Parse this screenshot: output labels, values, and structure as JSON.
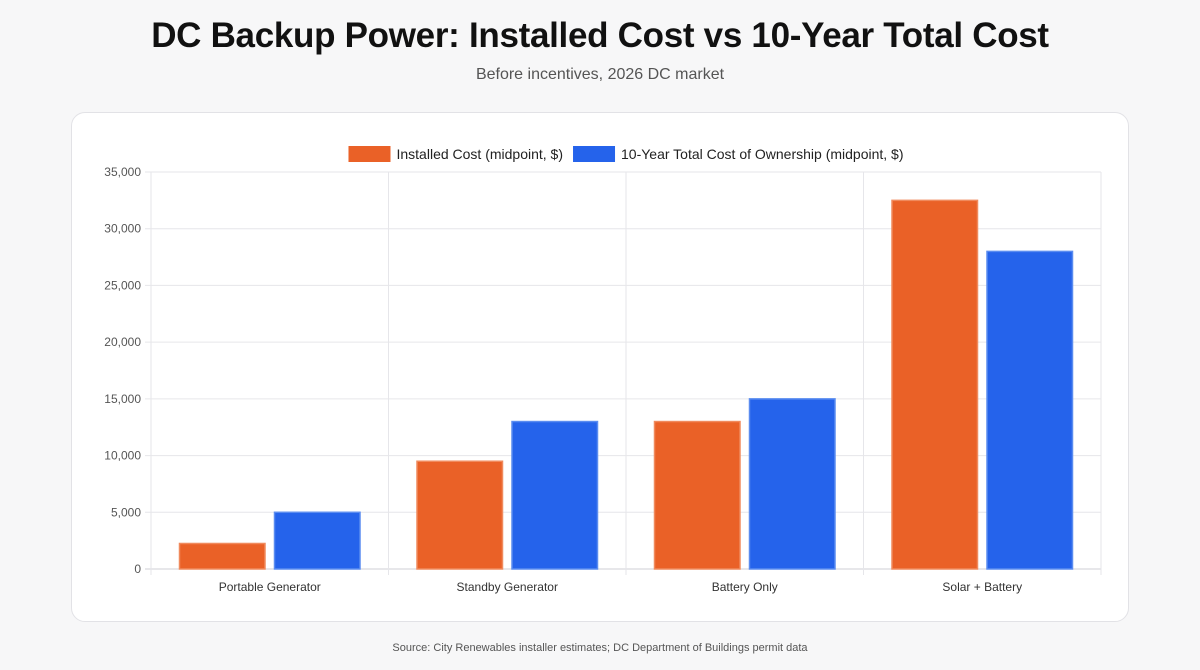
{
  "title": "DC Backup Power: Installed Cost vs 10-Year Total Cost",
  "subtitle": "Before incentives, 2026 DC market",
  "source": "Source: City Renewables installer estimates; DC Department of Buildings permit data",
  "chart_data": {
    "type": "bar",
    "categories": [
      "Portable Generator",
      "Standby Generator",
      "Battery Only",
      "Solar + Battery"
    ],
    "series": [
      {
        "name": "Installed Cost (midpoint, $)",
        "color": "#ea6127",
        "values": [
          2250,
          9500,
          13000,
          32500
        ]
      },
      {
        "name": "10-Year Total Cost of Ownership (midpoint, $)",
        "color": "#2563eb",
        "values": [
          5000,
          13000,
          15000,
          28000
        ]
      }
    ],
    "ylim": [
      0,
      35000
    ],
    "yticks": [
      "0",
      "5,000",
      "10,000",
      "15,000",
      "20,000",
      "25,000",
      "30,000",
      "35,000"
    ],
    "grid": true,
    "legend": "top-center"
  }
}
